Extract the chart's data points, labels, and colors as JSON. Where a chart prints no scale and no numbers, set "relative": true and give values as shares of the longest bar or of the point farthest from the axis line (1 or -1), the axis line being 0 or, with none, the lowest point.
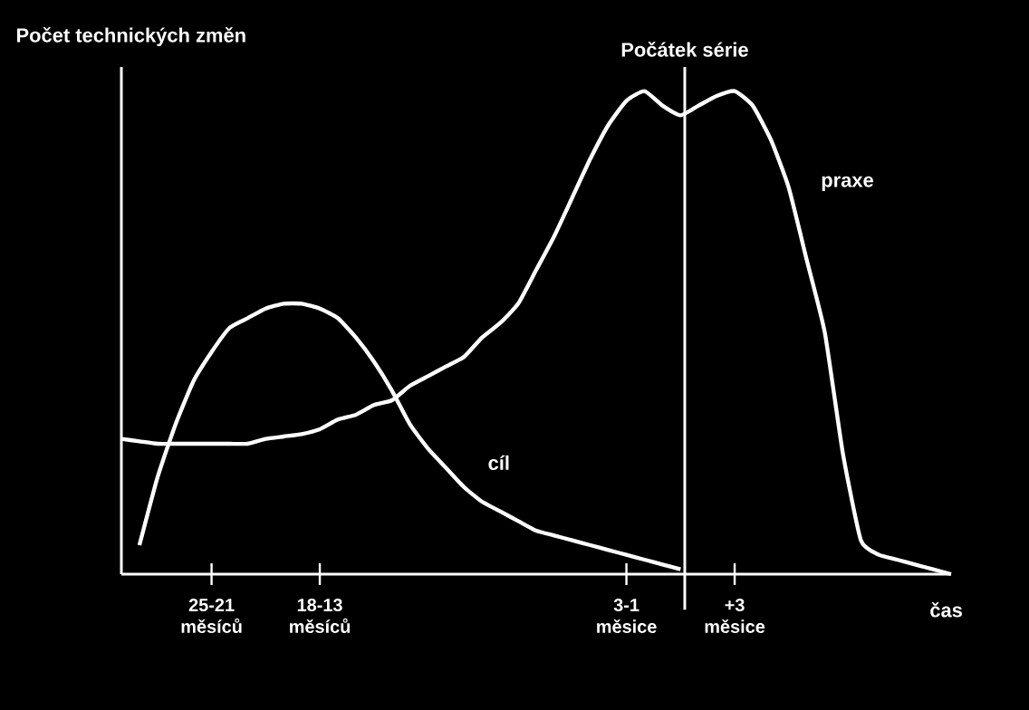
{
  "chart_data": {
    "type": "line",
    "relative": true,
    "ylabel": "Počet technických změn",
    "xlabel": "čas",
    "categories": [
      null,
      null,
      null,
      null,
      null,
      "25-21 měsíců",
      null,
      null,
      null,
      null,
      null,
      "18-13 měsíců",
      null,
      null,
      null,
      null,
      null,
      null,
      null,
      null,
      null,
      null,
      null,
      null,
      null,
      null,
      null,
      null,
      "3-1 měsice",
      null,
      null,
      null,
      null,
      null,
      "+3 měsice",
      null,
      null,
      null,
      null,
      null,
      null,
      null,
      null,
      null,
      null,
      null,
      null
    ],
    "series": [
      {
        "color": "#ffffff",
        "values": [
          0.28,
          0.275,
          0.27,
          0.27,
          0.27,
          0.27,
          0.27,
          0.27,
          0.28,
          0.285,
          0.29,
          0.3,
          0.32,
          0.33,
          0.35,
          0.36,
          0.39,
          0.41,
          0.43,
          0.45,
          0.49,
          0.52,
          0.56,
          0.63,
          0.7,
          0.78,
          0.86,
          0.93,
          0.98,
          1.0,
          0.97,
          0.95,
          0.97,
          0.99,
          1.0,
          0.97,
          0.9,
          0.8,
          0.65,
          0.5,
          0.25,
          0.07,
          0.04,
          0.03,
          0.02,
          0.01,
          0
        ]
      },
      {
        "color": "#ffffff",
        "values": [
          null,
          0.06,
          0.2,
          0.31,
          0.4,
          0.46,
          0.51,
          0.53,
          0.55,
          0.56,
          0.56,
          0.55,
          0.53,
          0.49,
          0.44,
          0.38,
          0.31,
          0.26,
          0.22,
          0.18,
          0.15,
          0.13,
          0.11,
          0.09,
          0.08,
          0.07,
          0.06,
          0.05,
          0.04,
          0.03,
          0.02,
          0.01,
          null,
          null,
          null,
          null,
          null,
          null,
          null,
          null,
          null,
          null,
          null,
          null,
          null,
          null,
          null
        ]
      }
    ],
    "annotations": [
      "Počátek série",
      "praxe",
      "cíl"
    ],
    "marker": "none",
    "line_style": "solid"
  }
}
